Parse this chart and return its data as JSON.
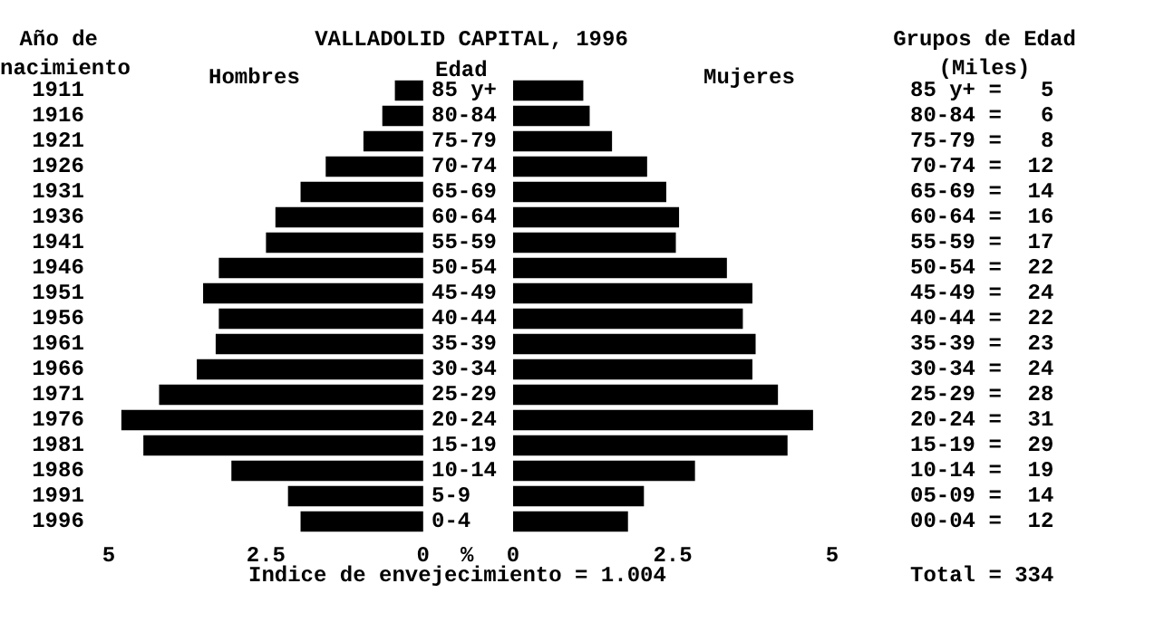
{
  "chart_data": [
    {
      "type": "bar",
      "orientation": "horizontal",
      "title": "Hombres",
      "ylabel": "Año de nacimiento",
      "categories": [
        "1911",
        "1916",
        "1921",
        "1926",
        "1931",
        "1936",
        "1941",
        "1946",
        "1951",
        "1956",
        "1961",
        "1966",
        "1971",
        "1976",
        "1981",
        "1986",
        "1991",
        "1996"
      ],
      "values": [
        0.45,
        0.65,
        0.95,
        1.55,
        1.95,
        2.35,
        2.5,
        3.25,
        3.5,
        3.25,
        3.3,
        3.6,
        4.2,
        4.8,
        4.45,
        3.05,
        2.15,
        1.95
      ],
      "color": "#000000",
      "xlim": [
        5,
        0
      ],
      "xticks": [
        5,
        2.5,
        0
      ]
    },
    {
      "type": "bar",
      "orientation": "horizontal",
      "title": "Mujeres",
      "ylabel": "Edad",
      "xlabel": "%",
      "categories": [
        "85 y+",
        "80-84",
        "75-79",
        "70-74",
        "65-69",
        "60-64",
        "55-59",
        "50-54",
        "45-49",
        "40-44",
        "35-39",
        "30-34",
        "25-29",
        "20-24",
        "15-19",
        "10-14",
        "5-9",
        "0-4"
      ],
      "values": [
        1.1,
        1.2,
        1.55,
        2.1,
        2.4,
        2.6,
        2.55,
        3.35,
        3.75,
        3.6,
        3.8,
        3.75,
        4.15,
        4.7,
        4.3,
        2.85,
        2.05,
        1.8
      ],
      "color": "#000000",
      "xlim": [
        0,
        5
      ],
      "xticks": [
        0,
        2.5,
        5
      ]
    },
    {
      "type": "other",
      "title": "VALLADOLID CAPITAL, 1996",
      "annotations": [
        "Indice de envejecimiento = 1.004"
      ]
    },
    {
      "type": "other",
      "title": "Grupos de Edad (Miles)",
      "annotations": [
        "85 y+ =   5",
        "80-84 =   6",
        "75-79 =   8",
        "70-74 =  12",
        "65-69 =  14",
        "60-64 =  16",
        "55-59 =  17",
        "50-54 =  22",
        "45-49 =  24",
        "40-44 =  22",
        "35-39 =  23",
        "30-34 =  24",
        "25-29 =  28",
        "20-24 =  31",
        "15-19 =  29",
        "10-14 =  19",
        "05-09 =  14",
        "00-04 =  12",
        "Total = 334"
      ]
    }
  ]
}
